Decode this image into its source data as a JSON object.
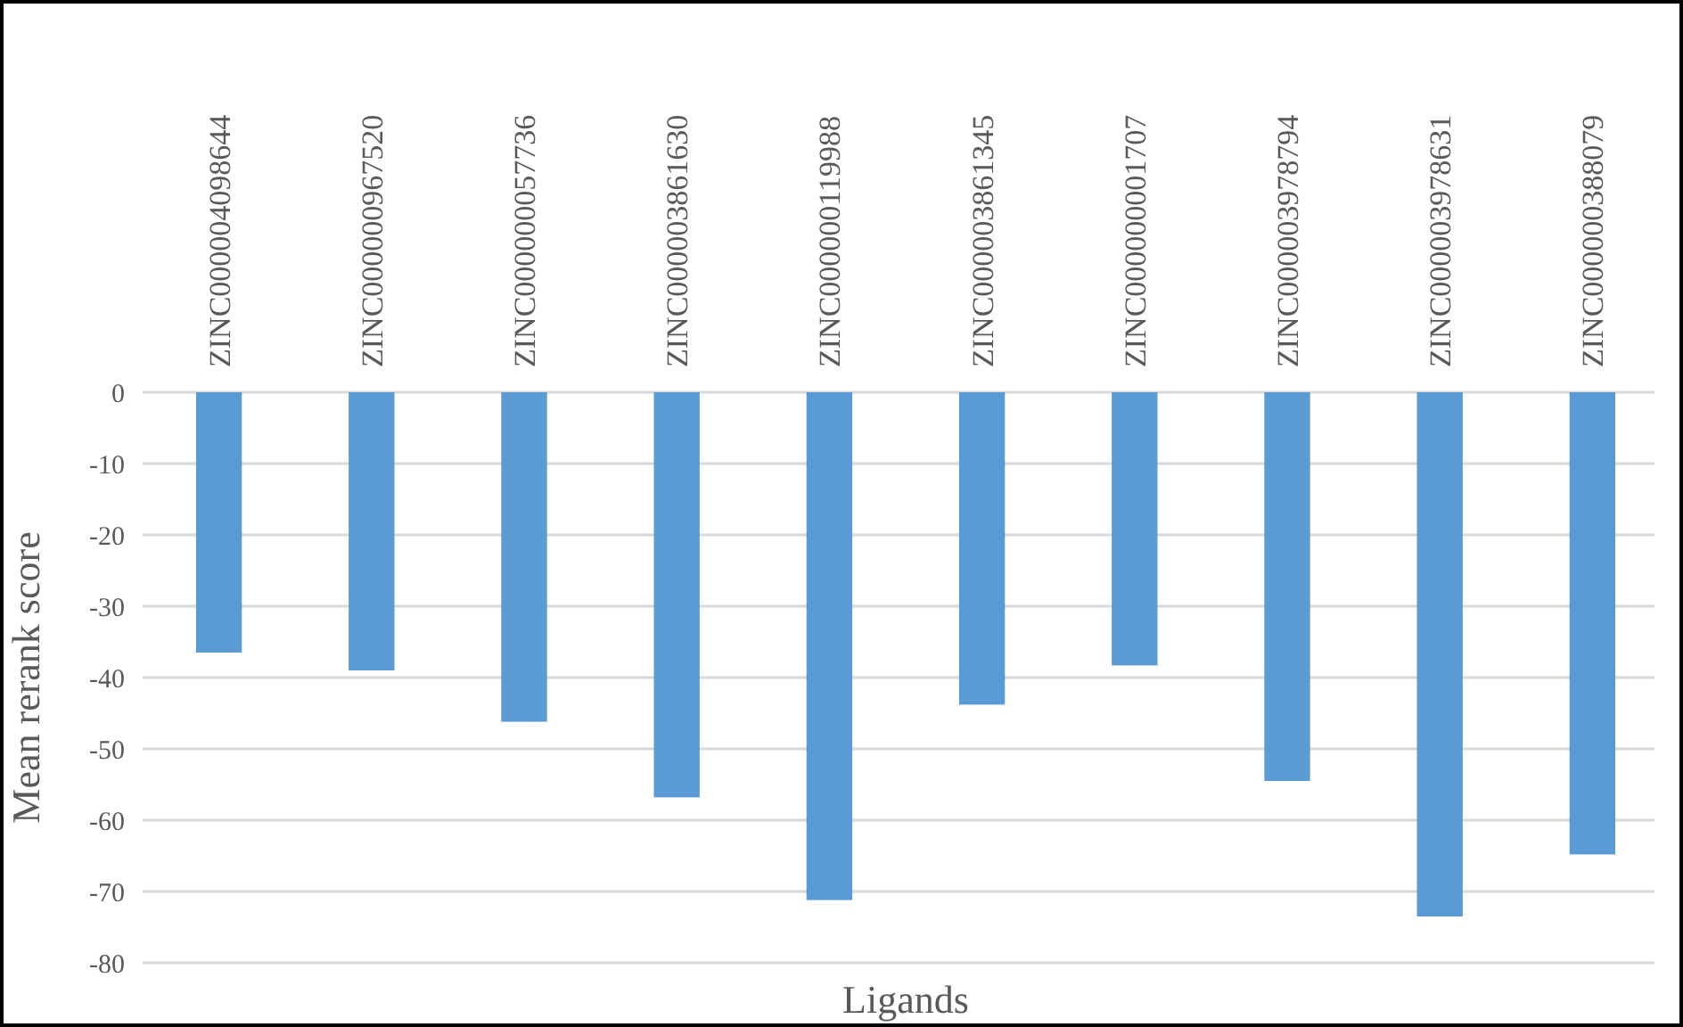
{
  "chart_data": {
    "type": "bar",
    "xlabel": "Ligands",
    "ylabel": "Mean rerank score",
    "categories": [
      "ZINC000004098644",
      "ZINC000000967520",
      "ZINC000000057736",
      "ZINC000003861630",
      "ZINC000000119988",
      "ZINC000003861345",
      "ZINC000000001707",
      "ZINC000003978794",
      "ZINC000003978631",
      "ZINC000000388079"
    ],
    "values": [
      -36.5,
      -39,
      -46.2,
      -56.8,
      -71.2,
      -43.8,
      -38.3,
      -54.5,
      -73.5,
      -64.8
    ],
    "color": "#5b9bd5",
    "ylim": [
      -80,
      0
    ],
    "yticks": [
      -80,
      -70,
      -60,
      -50,
      -40,
      -30,
      -20,
      -10,
      0
    ],
    "grid": "y"
  }
}
